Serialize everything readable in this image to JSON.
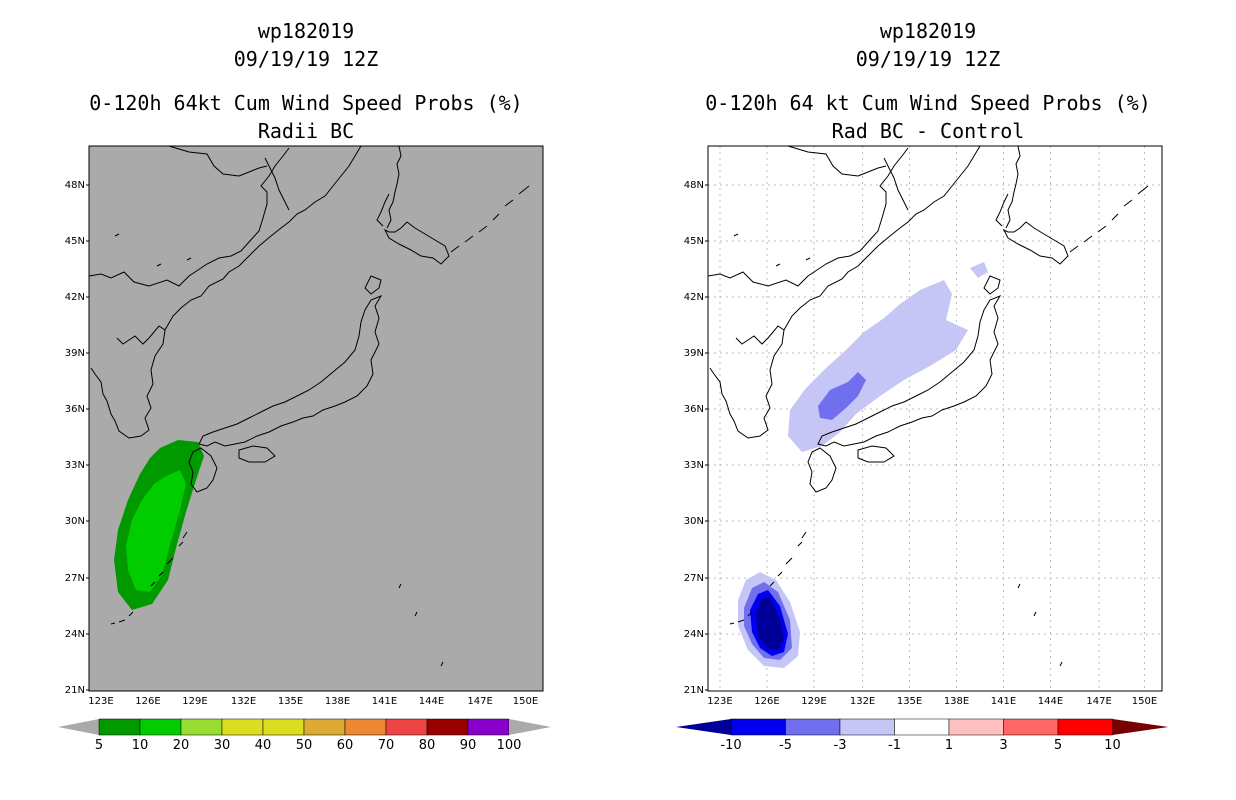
{
  "panels": [
    {
      "id": "left",
      "line1": "wp182019",
      "line2": "09/19/19 12Z",
      "line3": "0-120h 64kt Cum Wind Speed Probs (%)",
      "line4": "Radii BC",
      "background": "#aaaaaa",
      "colorbar": {
        "labels": [
          "5",
          "10",
          "20",
          "30",
          "40",
          "50",
          "60",
          "70",
          "80",
          "90",
          "100"
        ],
        "colors": [
          "#009900",
          "#00cc00",
          "#99dd33",
          "#dddd22",
          "#dddd22",
          "#ddaa33",
          "#ee8833",
          "#ee4444",
          "#990000",
          "#8800cc"
        ]
      }
    },
    {
      "id": "right",
      "line1": "wp182019",
      "line2": "09/19/19 12Z",
      "line3": "0-120h 64 kt Cum Wind Speed Probs (%)",
      "line4": "Rad BC - Control",
      "background": "#ffffff",
      "colorbar": {
        "labels": [
          "-10",
          "-5",
          "-3",
          "-1",
          "1",
          "3",
          "5",
          "10"
        ],
        "colors": [
          "#000099",
          "#0000ee",
          "#7070ee",
          "#c6c6f6",
          "#ffffff",
          "#ffc0c0",
          "#ff6666",
          "#ff0000",
          "#770000"
        ]
      }
    }
  ],
  "axes": {
    "lat_labels": [
      "48N",
      "45N",
      "42N",
      "39N",
      "36N",
      "33N",
      "30N",
      "27N",
      "24N",
      "21N"
    ],
    "lon_labels": [
      "123E",
      "126E",
      "129E",
      "132E",
      "135E",
      "138E",
      "141E",
      "144E",
      "147E",
      "150E"
    ],
    "lat_range": [
      21,
      50
    ],
    "lon_range": [
      122.5,
      152
    ]
  }
}
